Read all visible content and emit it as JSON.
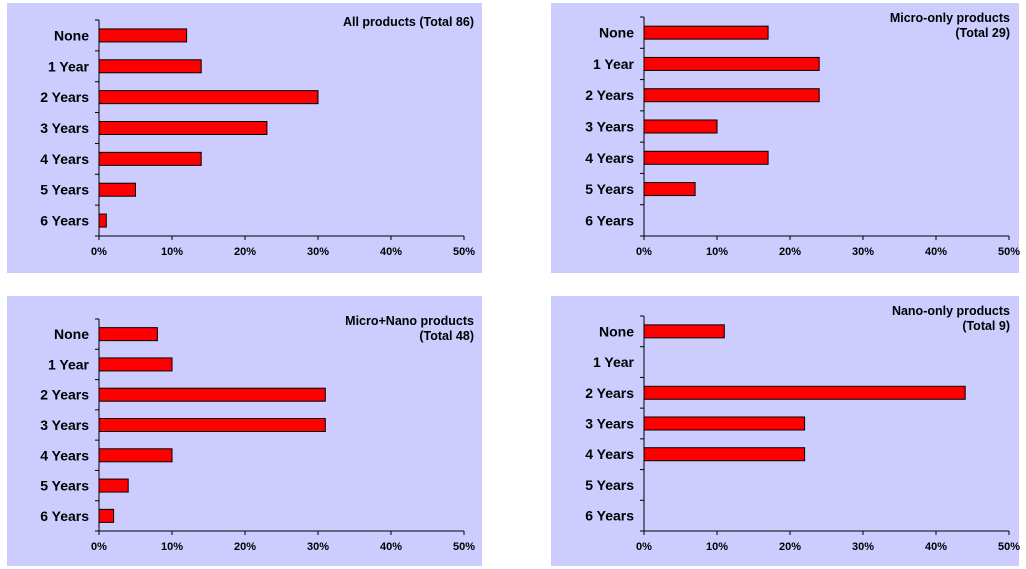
{
  "colors": {
    "panel_bg": "#ccccff",
    "bar_fill": "#ff0000",
    "bar_stroke": "#000000"
  },
  "chart_data": [
    {
      "type": "bar",
      "orientation": "horizontal",
      "title_lines": [
        "All products (Total 86)"
      ],
      "categories": [
        "None",
        "1 Year",
        "2 Years",
        "3 Years",
        "4 Years",
        "5 Years",
        "6 Years"
      ],
      "values": [
        12,
        14,
        30,
        23,
        14,
        5,
        1
      ],
      "xlim": [
        0,
        50
      ],
      "xticks": [
        "0%",
        "10%",
        "20%",
        "30%",
        "40%",
        "50%"
      ],
      "grid": false,
      "legend": "none"
    },
    {
      "type": "bar",
      "orientation": "horizontal",
      "title_lines": [
        "Micro-only  products",
        "(Total 29)"
      ],
      "categories": [
        "None",
        "1 Year",
        "2 Years",
        "3 Years",
        "4 Years",
        "5 Years",
        "6 Years"
      ],
      "values": [
        17,
        24,
        24,
        10,
        17,
        7,
        0
      ],
      "xlim": [
        0,
        50
      ],
      "xticks": [
        "0%",
        "10%",
        "20%",
        "30%",
        "40%",
        "50%"
      ],
      "grid": false,
      "legend": "none"
    },
    {
      "type": "bar",
      "orientation": "horizontal",
      "title_lines": [
        "Micro+Nano products",
        "(Total 48)"
      ],
      "categories": [
        "None",
        "1 Year",
        "2 Years",
        "3 Years",
        "4 Years",
        "5 Years",
        "6 Years"
      ],
      "values": [
        8,
        10,
        31,
        31,
        10,
        4,
        2
      ],
      "xlim": [
        0,
        50
      ],
      "xticks": [
        "0%",
        "10%",
        "20%",
        "30%",
        "40%",
        "50%"
      ],
      "grid": false,
      "legend": "none"
    },
    {
      "type": "bar",
      "orientation": "horizontal",
      "title_lines": [
        "Nano-only products",
        "(Total 9)"
      ],
      "categories": [
        "None",
        "1 Year",
        "2 Years",
        "3 Years",
        "4 Years",
        "5 Years",
        "6 Years"
      ],
      "values": [
        11,
        0,
        44,
        22,
        22,
        0,
        0
      ],
      "xlim": [
        0,
        50
      ],
      "xticks": [
        "0%",
        "10%",
        "20%",
        "30%",
        "40%",
        "50%"
      ],
      "grid": false,
      "legend": "none"
    }
  ]
}
